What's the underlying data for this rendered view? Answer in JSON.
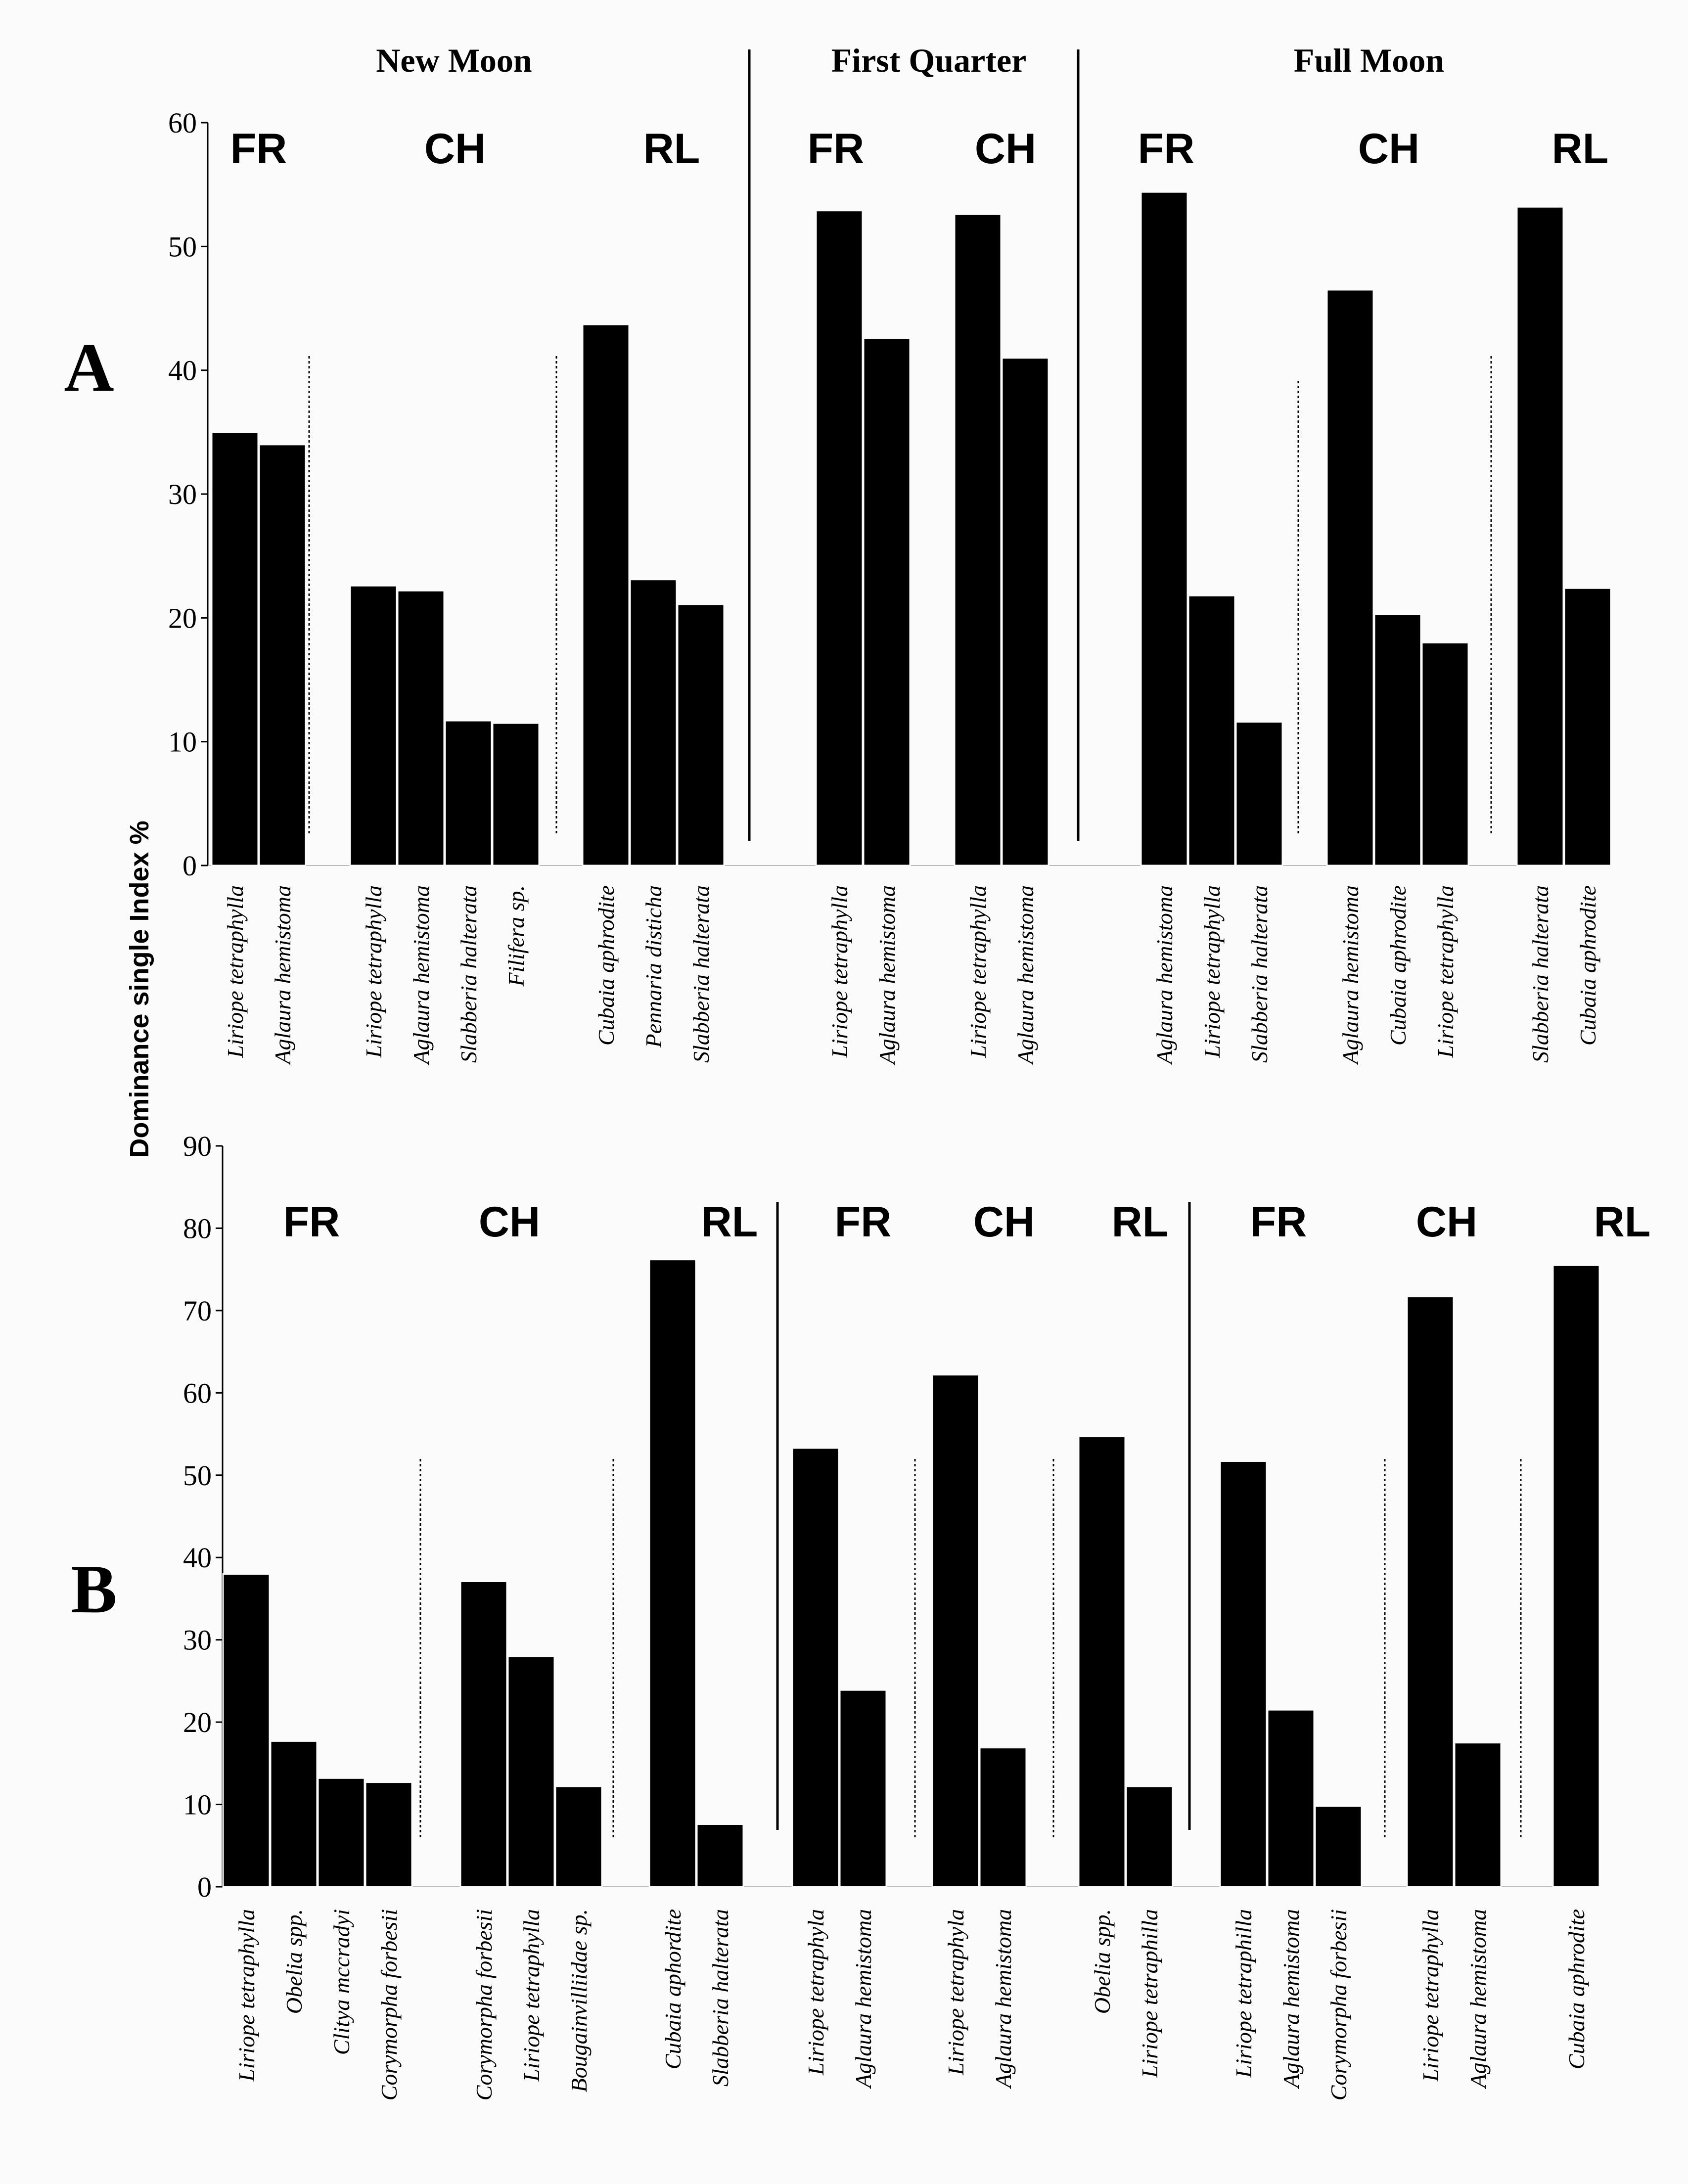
{
  "chart_data": {
    "type": "bar",
    "ylabel": "Dominance single Index %",
    "phases": [
      "New Moon",
      "First Quarter",
      "Full Moon"
    ],
    "panels": [
      {
        "label": "A",
        "ylim": [
          0,
          60
        ],
        "yticks": [
          0,
          10,
          20,
          30,
          40,
          50,
          60
        ],
        "groups": [
          {
            "phase": "New Moon",
            "habitat": "FR",
            "bars": [
              {
                "species": "Liriope tetraphylla",
                "value": 35
              },
              {
                "species": "Aglaura hemistoma",
                "value": 34
              }
            ]
          },
          {
            "phase": "New Moon",
            "habitat": "CH",
            "bars": [
              {
                "species": "Liriope tetraphylla",
                "value": 22.6
              },
              {
                "species": "Aglaura hemistoma",
                "value": 22.2
              },
              {
                "species": "Slabberia halterata",
                "value": 11.7
              },
              {
                "species": "Filifera sp.",
                "value": 11.5
              }
            ]
          },
          {
            "phase": "New Moon",
            "habitat": "RL",
            "bars": [
              {
                "species": "Cubaia aphrodite",
                "value": 43.7
              },
              {
                "species": "Pennaria disticha",
                "value": 23.1
              },
              {
                "species": "Slabberia halterata",
                "value": 21.1
              }
            ]
          },
          {
            "phase": "First Quarter",
            "habitat": "FR",
            "bars": [
              {
                "species": "Liriope tetraphylla",
                "value": 52.9
              },
              {
                "species": "Aglaura hemistoma",
                "value": 42.6
              }
            ]
          },
          {
            "phase": "First Quarter",
            "habitat": "CH",
            "bars": [
              {
                "species": "Liriope tetraphylla",
                "value": 52.6
              },
              {
                "species": "Aglaura hemistoma",
                "value": 41
              }
            ]
          },
          {
            "phase": "Full Moon",
            "habitat": "FR",
            "bars": [
              {
                "species": "Aglaura hemistoma",
                "value": 54.4
              },
              {
                "species": "Liriope tetraphylla",
                "value": 21.8
              },
              {
                "species": "Slabberia halterata",
                "value": 11.6
              }
            ]
          },
          {
            "phase": "Full Moon",
            "habitat": "CH",
            "bars": [
              {
                "species": "Aglaura hemistoma",
                "value": 46.5
              },
              {
                "species": "Cubaia aphrodite",
                "value": 20.3
              },
              {
                "species": "Liriope tetraphylla",
                "value": 18
              }
            ]
          },
          {
            "phase": "Full Moon",
            "habitat": "RL",
            "bars": [
              {
                "species": "Slabberia halterata",
                "value": 53.2
              },
              {
                "species": "Cubaia aphrodite",
                "value": 22.4
              }
            ]
          }
        ]
      },
      {
        "label": "B",
        "ylim": [
          0,
          90
        ],
        "yticks": [
          0,
          10,
          20,
          30,
          40,
          50,
          60,
          70,
          80,
          90
        ],
        "groups": [
          {
            "phase": "New Moon",
            "habitat": "FR",
            "bars": [
              {
                "species": "Liriope tetraphylla",
                "value": 38
              },
              {
                "species": "Obelia spp.",
                "value": 17.7
              },
              {
                "species": "Clitya mccradyi",
                "value": 13.2
              },
              {
                "species": "Corymorpha forbesii",
                "value": 12.7
              }
            ]
          },
          {
            "phase": "New Moon",
            "habitat": "CH",
            "bars": [
              {
                "species": "Corymorpha forbesii",
                "value": 37.1
              },
              {
                "species": "Liriope tetraphylla",
                "value": 28
              },
              {
                "species": "Bougainvilliidae sp.",
                "value": 12.2
              }
            ]
          },
          {
            "phase": "New Moon",
            "habitat": "RL",
            "bars": [
              {
                "species": "Cubaia aphordite",
                "value": 76.2
              },
              {
                "species": "Slabberia halterata",
                "value": 7.6
              }
            ]
          },
          {
            "phase": "First Quarter",
            "habitat": "FR",
            "bars": [
              {
                "species": "Liriope tetraphyla",
                "value": 53.3
              },
              {
                "species": "Aglaura hemistoma",
                "value": 23.9
              }
            ]
          },
          {
            "phase": "First Quarter",
            "habitat": "CH",
            "bars": [
              {
                "species": "Liriope tetraphyla",
                "value": 62.2
              },
              {
                "species": "Aglaura hemistoma",
                "value": 16.9
              }
            ]
          },
          {
            "phase": "First Quarter",
            "habitat": "RL",
            "bars": [
              {
                "species": "Obelia spp.",
                "value": 54.7
              },
              {
                "species": "Liriope tetraphilla",
                "value": 12.2
              }
            ]
          },
          {
            "phase": "Full Moon",
            "habitat": "FR",
            "bars": [
              {
                "species": "Liriope tetraphilla",
                "value": 51.7
              },
              {
                "species": "Aglaura hemistoma",
                "value": 21.5
              },
              {
                "species": "Corymorpha forbesii",
                "value": 9.8
              }
            ]
          },
          {
            "phase": "Full Moon",
            "habitat": "CH",
            "bars": [
              {
                "species": "Liriope tetraphylla",
                "value": 71.7
              },
              {
                "species": "Aglaura hemistoma",
                "value": 17.5
              }
            ]
          },
          {
            "phase": "Full Moon",
            "habitat": "RL",
            "bars": [
              {
                "species": "Cubaia aphrodite",
                "value": 75.5
              }
            ]
          }
        ]
      }
    ]
  }
}
